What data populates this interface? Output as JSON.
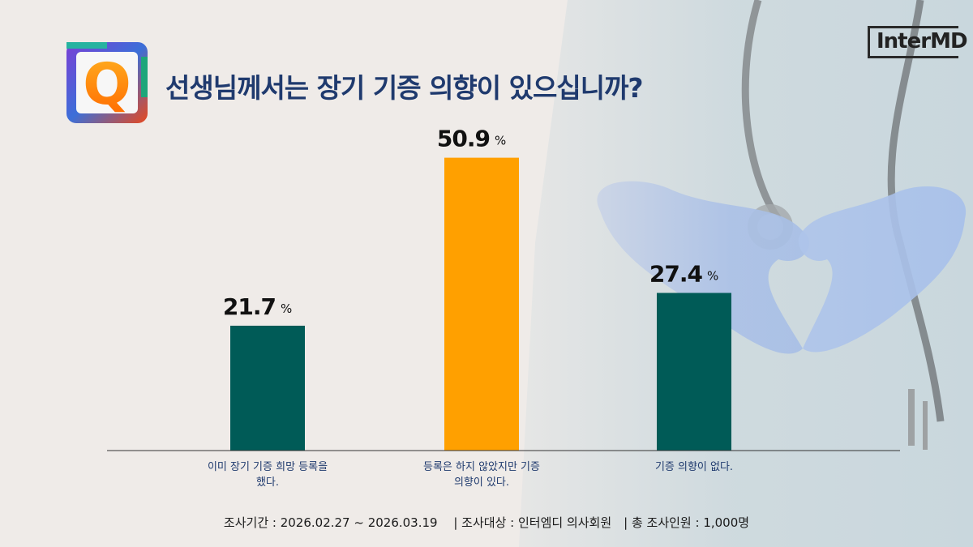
{
  "title": "선생님께서는 장기 기증 의향이 있으십니까?",
  "logo": {
    "badge_letter": "Q",
    "brand": "InterMD"
  },
  "colors": {
    "teal": "#005b57",
    "orange": "#ffa000",
    "title": "#1f3a6e"
  },
  "chart_data": {
    "type": "bar",
    "categories": [
      [
        "이미 장기 기증 희망 등록을",
        "했다."
      ],
      [
        "등록은 하지 않았지만 기증",
        "의향이 있다."
      ],
      [
        "기증 의향이 없다."
      ]
    ],
    "values": [
      21.7,
      50.9,
      27.4
    ],
    "value_labels": [
      "21.7",
      "50.9",
      "27.4"
    ],
    "unit": "%",
    "bar_colors": [
      "#005b57",
      "#ffa000",
      "#005b57"
    ],
    "ylim": [
      0,
      60
    ],
    "grid": false,
    "legend": "none"
  },
  "footer": "조사기간 : 2026.02.27 ~ 2026.03.19　 |  조사대상 : 인터엠디 의사회원　|  총 조사인원 : 1,000명"
}
